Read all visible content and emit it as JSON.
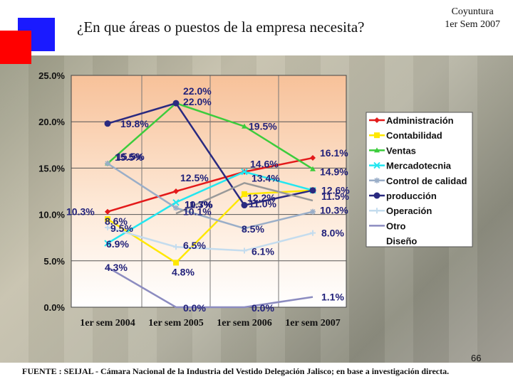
{
  "header": {
    "title": "¿En que áreas o puestos de la empresa necesita?",
    "corner_line1": "Coyuntura",
    "corner_line2": "1er Sem 2007"
  },
  "page_number": "66",
  "footer": "FUENTE : SEIJAL - Cámara Nacional de la Industria del Vestido Delegación Jalisco; en base a investigación directa.",
  "colors": {
    "blue_square": "#1a1aff",
    "red_square": "#ff0000"
  },
  "chart_data": {
    "type": "line",
    "title": "",
    "xlabel": "",
    "ylabel": "",
    "categories": [
      "1er sem 2004",
      "1er sem 2005",
      "1er sem 2006",
      "1er sem 2007"
    ],
    "ylim": [
      0,
      25
    ],
    "y_ticks": [
      "0.0%",
      "5.0%",
      "10.0%",
      "15.0%",
      "20.0%",
      "25.0%"
    ],
    "grid": true,
    "legend_position": "right",
    "series": [
      {
        "name": "Administración",
        "color": "#e31a1a",
        "marker": "diamond",
        "values": [
          10.3,
          12.5,
          14.6,
          16.1
        ],
        "labels": [
          "10.3%",
          "12.5%",
          "14.6%",
          "16.1%"
        ]
      },
      {
        "name": "Contabilidad",
        "color": "#ffe800",
        "marker": "square",
        "values": [
          9.5,
          4.8,
          12.2,
          12.6
        ],
        "labels": [
          "9.5%",
          "4.8%",
          "12.2%",
          ""
        ]
      },
      {
        "name": "Ventas",
        "color": "#3ccc3c",
        "marker": "triangle",
        "values": [
          15.5,
          22.0,
          19.5,
          14.9
        ],
        "labels": [
          "15.5%",
          "22.0%",
          "19.5%",
          "14.9%"
        ]
      },
      {
        "name": "Mercadotecnia",
        "color": "#22e6f0",
        "marker": "x",
        "values": [
          6.9,
          11.3,
          14.6,
          12.6
        ],
        "labels": [
          "6.9%",
          "11.3%",
          "",
          ""
        ]
      },
      {
        "name": "Control de calidad",
        "color": "#9aaec8",
        "marker": "star",
        "values": [
          15.5,
          10.7,
          8.5,
          10.3
        ],
        "labels": [
          "15.5%",
          "10.7%",
          "8.5%",
          "10.3%"
        ]
      },
      {
        "name": "producción",
        "color": "#2a2a80",
        "marker": "circle",
        "values": [
          19.8,
          22.0,
          11.0,
          12.6
        ],
        "labels": [
          "19.8%",
          "22.0%",
          "11.0%",
          "12.6%"
        ]
      },
      {
        "name": "Operación",
        "color": "#c4dcee",
        "marker": "plus",
        "values": [
          8.6,
          6.5,
          6.1,
          8.0
        ],
        "labels": [
          "8.6%",
          "6.5%",
          "6.1%",
          "8.0%"
        ]
      },
      {
        "name": "Otro",
        "color": "#8c8cc0",
        "marker": "none",
        "values": [
          4.3,
          0.0,
          0.0,
          1.1
        ],
        "labels": [
          "4.3%",
          "0.0%",
          "0.0%",
          "1.1%"
        ]
      },
      {
        "name": "Diseño",
        "color": "#999999",
        "marker": "none",
        "values": [
          null,
          10.1,
          13.4,
          11.5
        ],
        "labels": [
          "",
          "10.1%",
          "13.4%",
          "11.5%"
        ]
      }
    ]
  }
}
